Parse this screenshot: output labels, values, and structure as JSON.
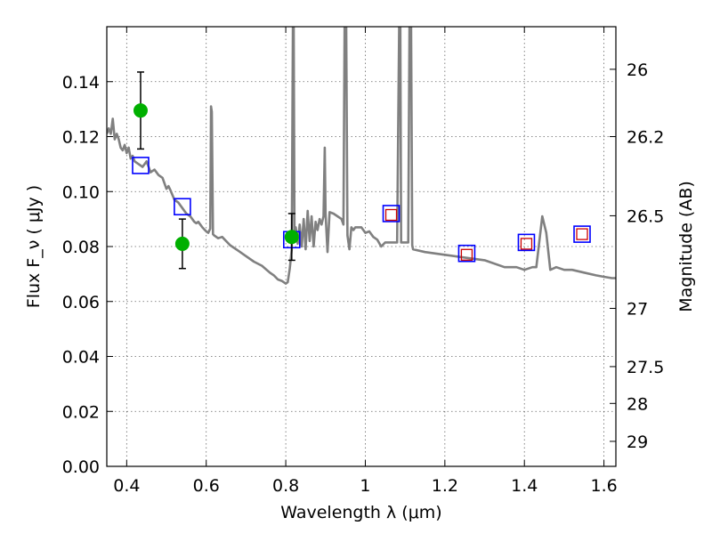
{
  "chart_data": {
    "type": "scatter",
    "xlabel": "Wavelength  λ (μm)",
    "ylabel": "Flux  F_ν  ( μJy )",
    "y2label": "Magnitude (AB)",
    "xlim": [
      0.35,
      1.63
    ],
    "ylim": [
      0.0,
      0.16
    ],
    "grid": true,
    "x_ticks": [
      0.4,
      0.6,
      0.8,
      1.0,
      1.2,
      1.4,
      1.6
    ],
    "x_tick_labels": [
      "0.4",
      "0.6",
      "0.8",
      "1",
      "1.2",
      "1.4",
      "1.6"
    ],
    "y_ticks": [
      0.0,
      0.02,
      0.04,
      0.06,
      0.08,
      0.1,
      0.12,
      0.14
    ],
    "y_tick_labels": [
      "0.00",
      "0.02",
      "0.04",
      "0.06",
      "0.08",
      "0.10",
      "0.12",
      "0.14"
    ],
    "y2_ticks": [
      {
        "flux": 0.1445,
        "label": "26"
      },
      {
        "flux": 0.12,
        "label": "26.2"
      },
      {
        "flux": 0.0912,
        "label": "26.5"
      },
      {
        "flux": 0.0575,
        "label": "27"
      },
      {
        "flux": 0.0363,
        "label": "27.5"
      },
      {
        "flux": 0.0229,
        "label": "28"
      },
      {
        "flux": 0.0091,
        "label": "29"
      }
    ],
    "series": [
      {
        "style": "observed-points",
        "color": "#00b000",
        "x": [
          0.435,
          0.54,
          0.815
        ],
        "y": [
          0.1295,
          0.081,
          0.0835
        ],
        "yerr": [
          0.014,
          0.009,
          0.0085
        ]
      },
      {
        "style": "model-photometry",
        "color": "#0000ff",
        "x": [
          0.435,
          0.54,
          0.815,
          1.065,
          1.255,
          1.405,
          1.545
        ],
        "y": [
          0.1095,
          0.0945,
          0.0825,
          0.092,
          0.0775,
          0.0815,
          0.0845
        ]
      },
      {
        "style": "measured-photometry",
        "color": "#cc0000",
        "x": [
          1.065,
          1.255,
          1.405,
          1.545
        ],
        "y": [
          0.0915,
          0.077,
          0.081,
          0.0845
        ]
      },
      {
        "style": "model-spectrum",
        "color": "#808080",
        "points": [
          [
            0.35,
            0.121
          ],
          [
            0.355,
            0.123
          ],
          [
            0.36,
            0.121
          ],
          [
            0.365,
            0.1265
          ],
          [
            0.37,
            0.119
          ],
          [
            0.375,
            0.121
          ],
          [
            0.38,
            0.119
          ],
          [
            0.385,
            0.116
          ],
          [
            0.39,
            0.115
          ],
          [
            0.395,
            0.117
          ],
          [
            0.4,
            0.114
          ],
          [
            0.405,
            0.116
          ],
          [
            0.41,
            0.112
          ],
          [
            0.415,
            0.113
          ],
          [
            0.42,
            0.111
          ],
          [
            0.43,
            0.11
          ],
          [
            0.44,
            0.109
          ],
          [
            0.45,
            0.111
          ],
          [
            0.46,
            0.107
          ],
          [
            0.47,
            0.108
          ],
          [
            0.48,
            0.106
          ],
          [
            0.49,
            0.105
          ],
          [
            0.5,
            0.101
          ],
          [
            0.505,
            0.102
          ],
          [
            0.51,
            0.1005
          ],
          [
            0.52,
            0.097
          ],
          [
            0.53,
            0.096
          ],
          [
            0.54,
            0.094
          ],
          [
            0.55,
            0.092
          ],
          [
            0.56,
            0.091
          ],
          [
            0.57,
            0.089
          ],
          [
            0.575,
            0.0885
          ],
          [
            0.58,
            0.089
          ],
          [
            0.59,
            0.087
          ],
          [
            0.6,
            0.0855
          ],
          [
            0.605,
            0.085
          ],
          [
            0.61,
            0.0865
          ],
          [
            0.612,
            0.131
          ],
          [
            0.614,
            0.129
          ],
          [
            0.617,
            0.0845
          ],
          [
            0.62,
            0.084
          ],
          [
            0.63,
            0.083
          ],
          [
            0.64,
            0.0835
          ],
          [
            0.66,
            0.0805
          ],
          [
            0.68,
            0.0785
          ],
          [
            0.7,
            0.0765
          ],
          [
            0.72,
            0.0745
          ],
          [
            0.74,
            0.073
          ],
          [
            0.76,
            0.0705
          ],
          [
            0.77,
            0.0695
          ],
          [
            0.78,
            0.068
          ],
          [
            0.79,
            0.0675
          ],
          [
            0.8,
            0.0665
          ],
          [
            0.805,
            0.067
          ],
          [
            0.81,
            0.072
          ],
          [
            0.815,
            0.079
          ],
          [
            0.818,
            0.16
          ],
          [
            0.82,
            0.16
          ],
          [
            0.822,
            0.082
          ],
          [
            0.825,
            0.087
          ],
          [
            0.83,
            0.081
          ],
          [
            0.835,
            0.088
          ],
          [
            0.84,
            0.08
          ],
          [
            0.845,
            0.09
          ],
          [
            0.85,
            0.079
          ],
          [
            0.855,
            0.093
          ],
          [
            0.86,
            0.082
          ],
          [
            0.865,
            0.091
          ],
          [
            0.87,
            0.08
          ],
          [
            0.875,
            0.089
          ],
          [
            0.88,
            0.086
          ],
          [
            0.885,
            0.09
          ],
          [
            0.89,
            0.088
          ],
          [
            0.895,
            0.091
          ],
          [
            0.898,
            0.116
          ],
          [
            0.9,
            0.092
          ],
          [
            0.905,
            0.078
          ],
          [
            0.91,
            0.0925
          ],
          [
            0.92,
            0.092
          ],
          [
            0.93,
            0.091
          ],
          [
            0.94,
            0.09
          ],
          [
            0.945,
            0.088
          ],
          [
            0.948,
            0.16
          ],
          [
            0.952,
            0.16
          ],
          [
            0.955,
            0.084
          ],
          [
            0.96,
            0.079
          ],
          [
            0.965,
            0.087
          ],
          [
            0.97,
            0.086
          ],
          [
            0.975,
            0.087
          ],
          [
            0.98,
            0.087
          ],
          [
            0.99,
            0.087
          ],
          [
            1.0,
            0.085
          ],
          [
            1.01,
            0.0855
          ],
          [
            1.02,
            0.0835
          ],
          [
            1.03,
            0.0825
          ],
          [
            1.04,
            0.08
          ],
          [
            1.05,
            0.0815
          ],
          [
            1.06,
            0.0815
          ],
          [
            1.07,
            0.0815
          ],
          [
            1.08,
            0.0815
          ],
          [
            1.085,
            0.16
          ],
          [
            1.088,
            0.16
          ],
          [
            1.09,
            0.0815
          ],
          [
            1.1,
            0.0815
          ],
          [
            1.108,
            0.0815
          ],
          [
            1.111,
            0.16
          ],
          [
            1.115,
            0.16
          ],
          [
            1.118,
            0.0805
          ],
          [
            1.12,
            0.079
          ],
          [
            1.15,
            0.078
          ],
          [
            1.2,
            0.077
          ],
          [
            1.25,
            0.076
          ],
          [
            1.3,
            0.075
          ],
          [
            1.35,
            0.0725
          ],
          [
            1.38,
            0.0725
          ],
          [
            1.4,
            0.0715
          ],
          [
            1.42,
            0.0725
          ],
          [
            1.43,
            0.0725
          ],
          [
            1.445,
            0.091
          ],
          [
            1.455,
            0.085
          ],
          [
            1.465,
            0.0715
          ],
          [
            1.48,
            0.0725
          ],
          [
            1.5,
            0.0715
          ],
          [
            1.52,
            0.0715
          ],
          [
            1.55,
            0.0705
          ],
          [
            1.58,
            0.0695
          ],
          [
            1.6,
            0.069
          ],
          [
            1.62,
            0.0685
          ],
          [
            1.63,
            0.0685
          ]
        ]
      }
    ]
  }
}
